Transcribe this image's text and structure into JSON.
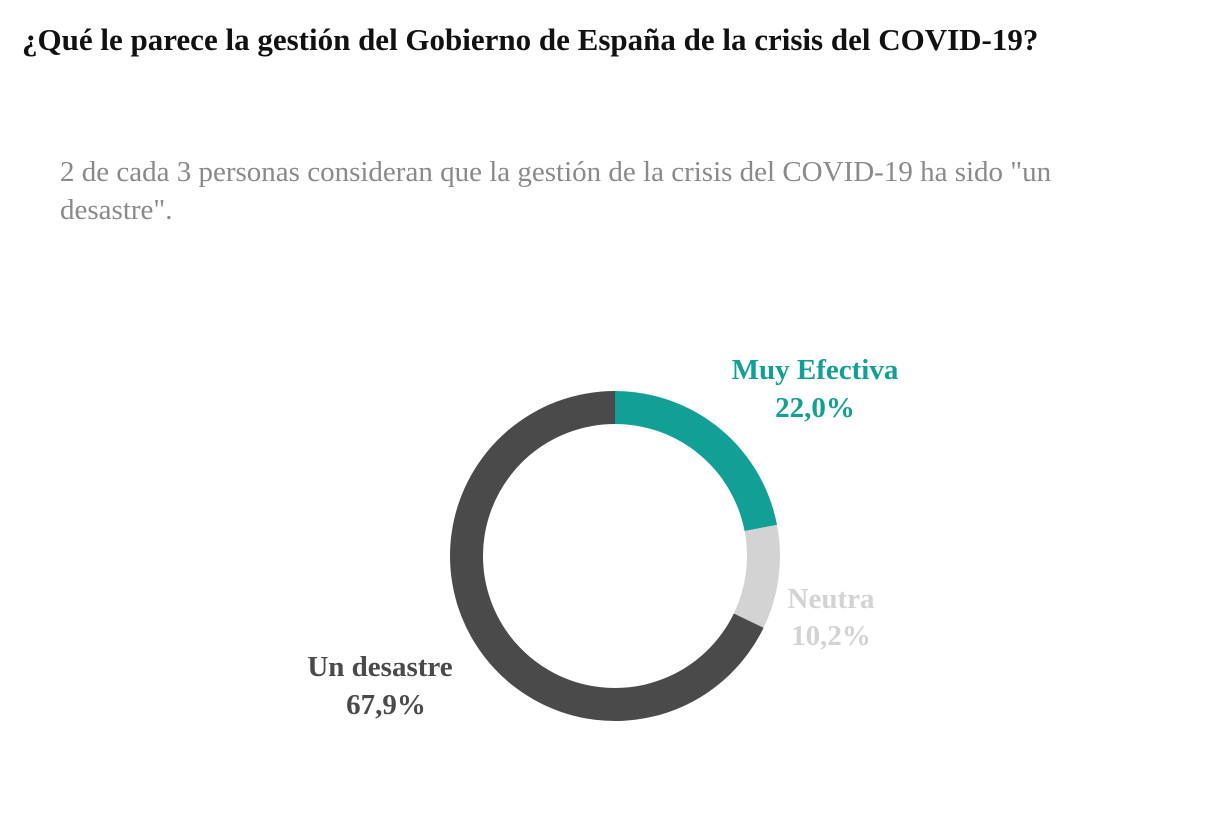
{
  "title": "¿Qué le parece la gestión del Gobierno de España de la crisis del COVID-19?",
  "subtitle": "2 de cada 3 personas consideran que la gestión de la crisis del COVID-19 ha sido \"un desastre\".",
  "chart_data": {
    "type": "pie",
    "variant": "donut",
    "slices": [
      {
        "label": "Muy Efectiva",
        "value": 22.0,
        "display": "22,0%",
        "color": "#12a096"
      },
      {
        "label": "Neutra",
        "value": 10.2,
        "display": "10,2%",
        "color": "#d3d3d3"
      },
      {
        "label": "Un desastre",
        "value": 67.9,
        "display": "67,9%",
        "color": "#4a4a4a"
      }
    ]
  }
}
